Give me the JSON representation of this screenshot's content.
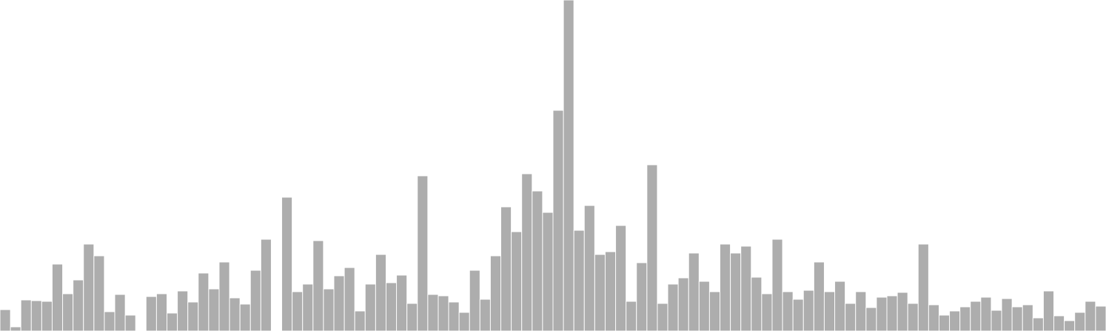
{
  "bar_color": "#adadad",
  "background_color": "#ffffff",
  "chart_data": {
    "type": "bar",
    "grid": false,
    "axes_visible": false,
    "ylim": [
      0,
      480
    ],
    "values": [
      31,
      6,
      45,
      44,
      43,
      97,
      54,
      74,
      126,
      109,
      28,
      53,
      23,
      0,
      50,
      54,
      26,
      58,
      42,
      84,
      61,
      100,
      48,
      39,
      88,
      133,
      0,
      194,
      57,
      68,
      131,
      61,
      80,
      92,
      29,
      68,
      111,
      70,
      81,
      40,
      225,
      53,
      51,
      42,
      27,
      88,
      46,
      109,
      180,
      144,
      228,
      203,
      172,
      320,
      480,
      146,
      182,
      111,
      115,
      153,
      43,
      99,
      241,
      40,
      68,
      77,
      113,
      72,
      57,
      126,
      113,
      123,
      78,
      54,
      133,
      57,
      46,
      59,
      100,
      57,
      72,
      40,
      57,
      34,
      49,
      51,
      56,
      40,
      126,
      38,
      23,
      29,
      35,
      43,
      49,
      30,
      47,
      35,
      38,
      19,
      58,
      22,
      15,
      27,
      43,
      36
    ]
  }
}
